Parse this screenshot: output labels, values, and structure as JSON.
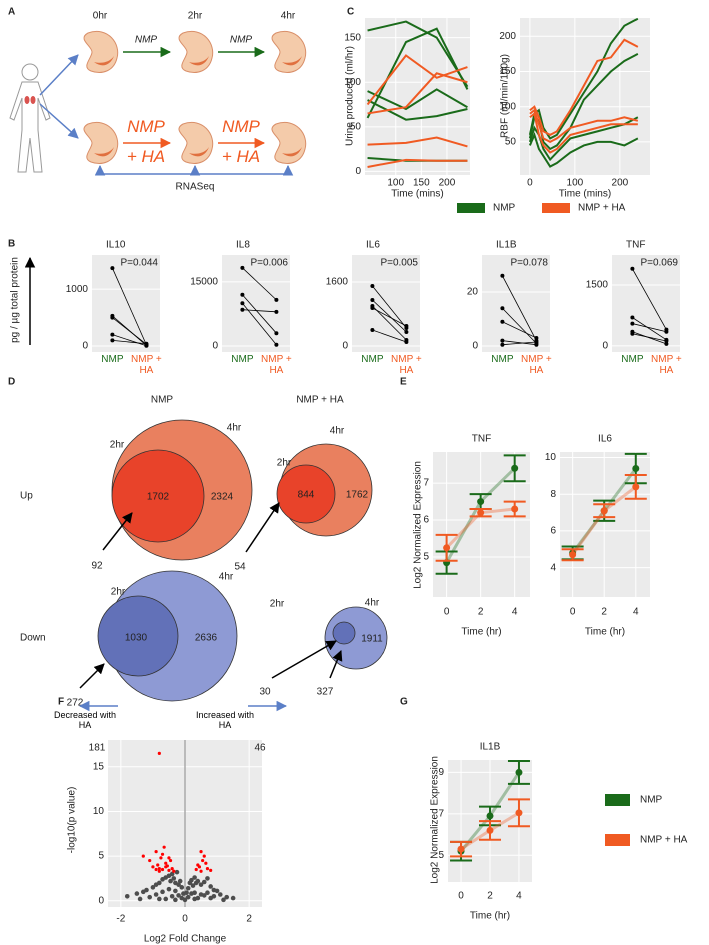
{
  "panel_labels": [
    "A",
    "B",
    "C",
    "D",
    "E",
    "F",
    "G"
  ],
  "diagram": {
    "times": [
      "0hr",
      "2hr",
      "4hr"
    ],
    "control_arrow": "NMP",
    "treated_arrow": "NMP + HA",
    "assay": "RNASeq"
  },
  "venn": {
    "columns": [
      "NMP",
      "NMP + HA"
    ],
    "rows": [
      "Up",
      "Down"
    ],
    "early": "2hr",
    "late": "4hr",
    "groups": [
      [
        {
          "inner": 1702,
          "outer": 2324,
          "arrows": [
            92
          ]
        },
        {
          "inner": 844,
          "outer": 1762,
          "arrows": [
            54
          ]
        }
      ],
      [
        {
          "inner": 1030,
          "outer": 2636,
          "arrows": [
            272
          ]
        },
        {
          "outer": 1911,
          "arrows": [
            30,
            327
          ]
        }
      ]
    ]
  },
  "chart_data": [
    {
      "type": "line",
      "ylabel": "Urine produced (ml/hr)",
      "xlabel": "Time (mins)",
      "x": [
        45,
        120,
        180,
        240
      ],
      "xlim": [
        40,
        245
      ],
      "xticks": [
        100,
        150,
        200
      ],
      "ylim": [
        -4,
        172
      ],
      "yticks": [
        0,
        50,
        100,
        150
      ],
      "grid": true,
      "panel_color": "#ebebeb",
      "series": [
        {
          "color": "#1a6b1a",
          "values": [
            158,
            168,
            150,
            95
          ]
        },
        {
          "color": "#1a6b1a",
          "values": [
            60,
            145,
            160,
            92
          ]
        },
        {
          "color": "#1a6b1a",
          "values": [
            90,
            70,
            92,
            72
          ]
        },
        {
          "color": "#1a6b1a",
          "values": [
            80,
            58,
            62,
            70
          ]
        },
        {
          "color": "#1a6b1a",
          "values": [
            15,
            12,
            12,
            12
          ]
        },
        {
          "color": "#f05a22",
          "values": [
            75,
            130,
            105,
            117
          ]
        },
        {
          "color": "#f05a22",
          "values": [
            65,
            72,
            110,
            100
          ]
        },
        {
          "color": "#f05a22",
          "values": [
            30,
            32,
            38,
            28
          ]
        },
        {
          "color": "#f05a22",
          "values": [
            5,
            13,
            12,
            12
          ]
        }
      ],
      "legend": [
        {
          "name": "NMP",
          "color": "#1a6b1a"
        },
        {
          "name": "NMP + HA",
          "color": "#f05a22"
        }
      ]
    },
    {
      "type": "line",
      "ylabel": "RBF (ml/min/100g)",
      "xlabel": "Time (mins)",
      "x": [
        0,
        10,
        20,
        30,
        45,
        60,
        90,
        120,
        150,
        180,
        210,
        240
      ],
      "xlim": [
        -22,
        267
      ],
      "xticks": [
        0,
        100,
        200
      ],
      "ylim": [
        3,
        226
      ],
      "yticks": [
        50,
        100,
        150,
        200
      ],
      "grid": true,
      "panel_color": "#ebebeb",
      "series": [
        {
          "color": "#1a6b1a",
          "values": [
            60,
            90,
            95,
            70,
            55,
            60,
            90,
            120,
            150,
            190,
            215,
            225
          ]
        },
        {
          "color": "#1a6b1a",
          "values": [
            55,
            85,
            80,
            50,
            40,
            45,
            70,
            110,
            130,
            150,
            165,
            175
          ]
        },
        {
          "color": "#1a6b1a",
          "values": [
            50,
            70,
            60,
            40,
            25,
            35,
            55,
            60,
            65,
            70,
            75,
            85
          ]
        },
        {
          "color": "#1a6b1a",
          "values": [
            45,
            60,
            40,
            30,
            15,
            20,
            35,
            45,
            50,
            50,
            45,
            55
          ]
        },
        {
          "color": "#f05a22",
          "values": [
            95,
            100,
            85,
            65,
            60,
            65,
            95,
            130,
            165,
            170,
            195,
            185
          ]
        },
        {
          "color": "#f05a22",
          "values": [
            90,
            95,
            75,
            55,
            50,
            55,
            70,
            75,
            80,
            80,
            85,
            80
          ]
        },
        {
          "color": "#f05a22",
          "values": [
            85,
            90,
            60,
            45,
            35,
            40,
            60,
            65,
            70,
            75,
            75,
            75
          ]
        }
      ]
    },
    {
      "type": "paired",
      "title": "IL10",
      "annotation": "P=0.044",
      "ylabel": "pg / µg total protein",
      "categories": [
        "NMP",
        "NMP + HA"
      ],
      "category_colors": [
        "#1a6b1a",
        "#f05a22"
      ],
      "ylim": [
        -105,
        1600
      ],
      "yticks": [
        0,
        1000
      ],
      "grid": true,
      "panel_color": "#ebebeb",
      "series": [
        {
          "color": "#000000",
          "values": [
            1370,
            20
          ]
        },
        {
          "color": "#000000",
          "values": [
            530,
            10
          ]
        },
        {
          "color": "#000000",
          "values": [
            500,
            30
          ]
        },
        {
          "color": "#000000",
          "values": [
            200,
            5
          ]
        },
        {
          "color": "#000000",
          "values": [
            100,
            40
          ]
        }
      ]
    },
    {
      "type": "paired",
      "title": "IL8",
      "annotation": "P=0.006",
      "categories": [
        "NMP",
        "NMP + HA"
      ],
      "category_colors": [
        "#1a6b1a",
        "#f05a22"
      ],
      "ylim": [
        -1400,
        21300
      ],
      "yticks": [
        0,
        15000
      ],
      "grid": true,
      "panel_color": "#ebebeb",
      "series": [
        {
          "color": "#000000",
          "values": [
            18300,
            10800
          ]
        },
        {
          "color": "#000000",
          "values": [
            12000,
            3000
          ]
        },
        {
          "color": "#000000",
          "values": [
            10000,
            300
          ]
        },
        {
          "color": "#000000",
          "values": [
            8500,
            8000
          ]
        }
      ]
    },
    {
      "type": "paired",
      "title": "IL6",
      "annotation": "P=0.005",
      "categories": [
        "NMP",
        "NMP + HA"
      ],
      "category_colors": [
        "#1a6b1a",
        "#f05a22"
      ],
      "ylim": [
        -150,
        2275
      ],
      "yticks": [
        0,
        1600
      ],
      "grid": true,
      "panel_color": "#ebebeb",
      "series": [
        {
          "color": "#000000",
          "values": [
            1500,
            450
          ]
        },
        {
          "color": "#000000",
          "values": [
            1150,
            350
          ]
        },
        {
          "color": "#000000",
          "values": [
            1000,
            150
          ]
        },
        {
          "color": "#000000",
          "values": [
            950,
            500
          ]
        },
        {
          "color": "#000000",
          "values": [
            400,
            100
          ]
        }
      ]
    },
    {
      "type": "paired",
      "title": "IL1B",
      "annotation": "P=0.078",
      "categories": [
        "NMP",
        "NMP + HA"
      ],
      "category_colors": [
        "#1a6b1a",
        "#f05a22"
      ],
      "ylim": [
        -2.2,
        33.7
      ],
      "yticks": [
        0,
        20
      ],
      "grid": true,
      "panel_color": "#ebebeb",
      "series": [
        {
          "color": "#000000",
          "values": [
            26,
            2
          ]
        },
        {
          "color": "#000000",
          "values": [
            14,
            1
          ]
        },
        {
          "color": "#000000",
          "values": [
            9,
            3
          ]
        },
        {
          "color": "#000000",
          "values": [
            2,
            0.5
          ]
        },
        {
          "color": "#000000",
          "values": [
            0.5,
            1.5
          ]
        }
      ]
    },
    {
      "type": "paired",
      "title": "TNF",
      "annotation": "P=0.069",
      "categories": [
        "NMP",
        "NMP + HA"
      ],
      "category_colors": [
        "#1a6b1a",
        "#f05a22"
      ],
      "ylim": [
        -150,
        2240
      ],
      "yticks": [
        0,
        1500
      ],
      "grid": true,
      "panel_color": "#ebebeb",
      "series": [
        {
          "color": "#000000",
          "values": [
            1900,
            400
          ]
        },
        {
          "color": "#000000",
          "values": [
            700,
            150
          ]
        },
        {
          "color": "#000000",
          "values": [
            550,
            350
          ]
        },
        {
          "color": "#000000",
          "values": [
            350,
            50
          ]
        },
        {
          "color": "#000000",
          "values": [
            300,
            120
          ]
        }
      ]
    },
    {
      "type": "errorline",
      "title": "TNF",
      "ylabel": "Log2 Normalized Expression",
      "xlabel": "Time (hr)",
      "x": [
        0,
        2,
        4
      ],
      "xlim": [
        -0.8,
        4.9
      ],
      "xticks": [
        0,
        2,
        4
      ],
      "ylim": [
        3.92,
        7.84
      ],
      "yticks": [
        5,
        6,
        7
      ],
      "grid": true,
      "panel_color": "#ebebeb",
      "series": [
        {
          "color": "#1a6b1a",
          "values": [
            4.85,
            6.5,
            7.4
          ],
          "errors": [
            0.3,
            0.2,
            0.35
          ]
        },
        {
          "color": "#f05a22",
          "values": [
            5.25,
            6.2,
            6.3
          ],
          "errors": [
            0.35,
            0.1,
            0.2
          ]
        }
      ]
    },
    {
      "type": "errorline",
      "title": "IL6",
      "xlabel": "Time (hr)",
      "x": [
        0,
        2,
        4
      ],
      "xlim": [
        -0.8,
        4.9
      ],
      "xticks": [
        0,
        2,
        4
      ],
      "ylim": [
        2.4,
        10.3
      ],
      "yticks": [
        4,
        6,
        8,
        10
      ],
      "grid": true,
      "panel_color": "#ebebeb",
      "series": [
        {
          "color": "#1a6b1a",
          "values": [
            4.8,
            7.1,
            9.4
          ],
          "errors": [
            0.35,
            0.55,
            0.8
          ]
        },
        {
          "color": "#f05a22",
          "values": [
            4.7,
            7.1,
            8.4
          ],
          "errors": [
            0.3,
            0.35,
            0.65
          ]
        }
      ]
    },
    {
      "type": "scatter",
      "xlabel": "Log2 Fold Change",
      "ylabel": "-log10(p value)",
      "xlim": [
        -2.4,
        2.4
      ],
      "xticks": [
        -2,
        0,
        2
      ],
      "ylim": [
        -0.7,
        18
      ],
      "yticks": [
        0,
        5,
        10,
        15
      ],
      "grid": true,
      "panel_color": "#ebebeb",
      "reference_line_x": 0,
      "annotations": [
        "Decreased with HA",
        "Increased with HA",
        "181",
        "46"
      ],
      "series": [
        {
          "color": "#4d4d4d",
          "x": [
            -1.8,
            -1.5,
            -1.3,
            -1.2,
            -1.0,
            -0.9,
            -0.8,
            -0.7,
            -0.6,
            -0.5,
            -0.45,
            -0.4,
            -0.35,
            -0.3,
            -0.25,
            -0.2,
            -0.15,
            -0.1,
            -0.05,
            0.05,
            0.1,
            0.15,
            0.2,
            0.25,
            0.3,
            0.35,
            0.4,
            0.5,
            0.6,
            0.7,
            0.8,
            0.9,
            1.0,
            1.1,
            1.3,
            1.5,
            -1.1,
            -0.9,
            -0.7,
            -0.5,
            -0.3,
            -0.2,
            -0.1,
            0.1,
            0.2,
            0.3,
            0.5,
            0.7,
            0.9,
            -0.6,
            -0.4,
            0.4,
            0.6,
            -0.8,
            0.8,
            -0.3,
            0.3,
            0,
            -1.4,
            1.2
          ],
          "values": [
            0.5,
            0.8,
            1.0,
            1.2,
            1.5,
            1.8,
            2.0,
            2.4,
            2.6,
            2.8,
            2.2,
            3.0,
            2.5,
            2.0,
            3.2,
            1.8,
            2.2,
            1.5,
            0.8,
            0.9,
            1.4,
            2.0,
            2.3,
            1.7,
            2.6,
            2.0,
            2.2,
            1.8,
            2.1,
            2.5,
            1.6,
            1.2,
            1.1,
            0.7,
            0.4,
            0.3,
            0.4,
            0.7,
            1.0,
            1.3,
            1.1,
            0.6,
            0.3,
            0.4,
            0.8,
            0.9,
            0.7,
            0.9,
            0.5,
            0.2,
            0.5,
            0.3,
            0.6,
            0.2,
            0.3,
            0.1,
            0.2,
            0.1,
            0.2,
            0.1
          ]
        },
        {
          "color": "#ff0000",
          "x": [
            -1.3,
            -1.1,
            -1.0,
            -0.9,
            -0.85,
            -0.8,
            -0.75,
            -0.7,
            -0.65,
            -0.6,
            -0.55,
            -0.5,
            -0.45,
            -0.4,
            -0.35,
            -0.9,
            -0.7,
            -0.6,
            -0.5,
            -0.8,
            0.35,
            0.4,
            0.5,
            0.55,
            0.6,
            0.7,
            0.8,
            0.45,
            0.65,
            0.5,
            -0.8
          ],
          "values": [
            5.0,
            4.5,
            3.8,
            5.5,
            4.0,
            3.6,
            4.8,
            3.5,
            6.0,
            4.2,
            3.9,
            3.4,
            4.5,
            3.6,
            3.3,
            3.5,
            5.2,
            3.8,
            4.8,
            3.3,
            3.5,
            4.0,
            3.3,
            4.5,
            5.0,
            3.6,
            3.4,
            3.8,
            4.2,
            5.5,
            16.5
          ]
        }
      ]
    },
    {
      "type": "errorline",
      "title": "IL1B",
      "ylabel": "Log2 Normalized Expression",
      "xlabel": "Time (hr)",
      "x": [
        0,
        2,
        4
      ],
      "xlim": [
        -0.9,
        4.9
      ],
      "xticks": [
        0,
        2,
        4
      ],
      "ylim": [
        3.71,
        9.6
      ],
      "yticks": [
        5,
        7,
        9
      ],
      "grid": true,
      "panel_color": "#ebebeb",
      "series": [
        {
          "name": "NMP",
          "color": "#1a6b1a",
          "values": [
            5.2,
            6.9,
            9.0
          ],
          "errors": [
            0.45,
            0.45,
            0.55
          ]
        },
        {
          "name": "NMP + HA",
          "color": "#f05a22",
          "values": [
            5.3,
            6.2,
            7.05
          ],
          "errors": [
            0.35,
            0.45,
            0.65
          ]
        }
      ]
    }
  ]
}
